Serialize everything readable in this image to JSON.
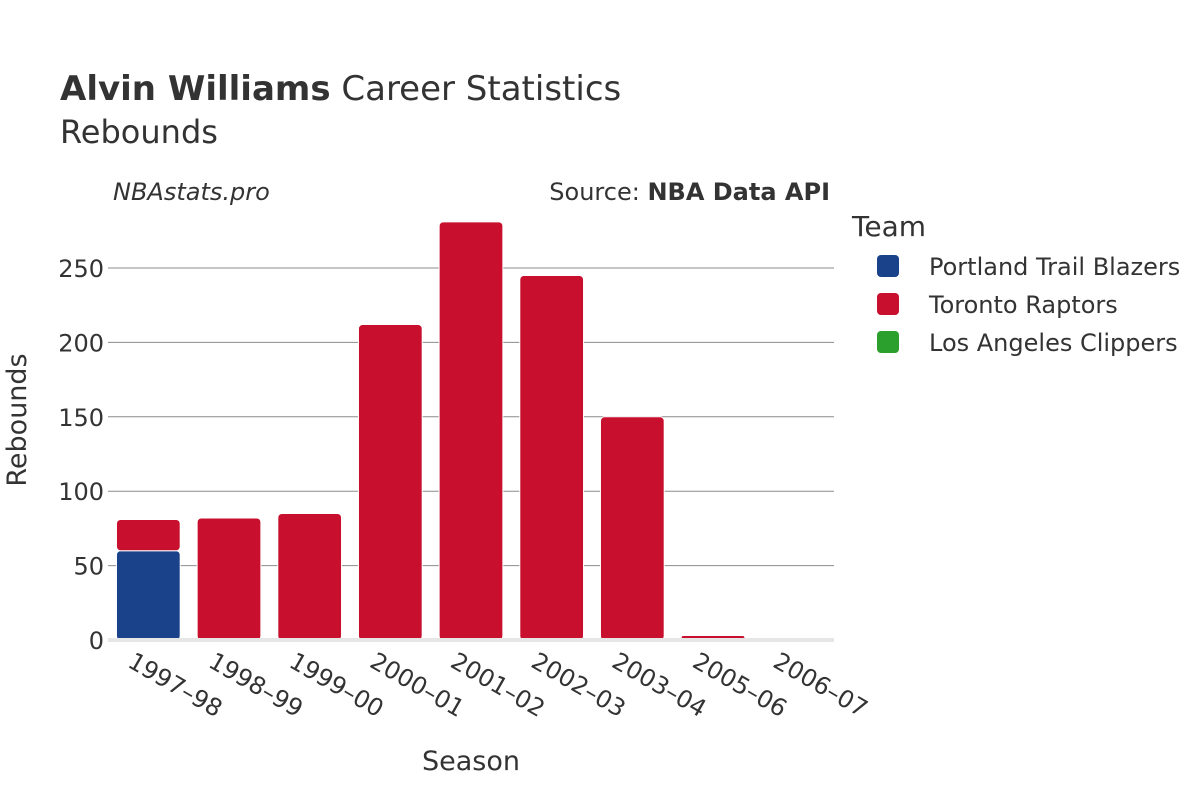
{
  "header": {
    "player_name": "Alvin Williams",
    "title_suffix": " Career Statistics",
    "subtitle": "Rebounds",
    "watermark": "NBAstats.pro",
    "source_prefix": "Source: ",
    "source_name": "NBA Data API"
  },
  "legend": {
    "title": "Team",
    "placement": "right"
  },
  "chart_data": {
    "type": "bar",
    "stacked": true,
    "xlabel": "Season",
    "ylabel": "Rebounds",
    "ylim": [
      0,
      285
    ],
    "yticks": [
      0,
      50,
      100,
      150,
      200,
      250
    ],
    "grid": true,
    "categories": [
      "1997–98",
      "1998–99",
      "1999–00",
      "2000–01",
      "2001–02",
      "2002–03",
      "2003–04",
      "2005–06",
      "2006–07"
    ],
    "series": [
      {
        "name": "Portland Trail Blazers",
        "color": "#1a428a",
        "values": [
          60,
          0,
          0,
          0,
          0,
          0,
          0,
          0,
          0
        ]
      },
      {
        "name": "Toronto Raptors",
        "color": "#c8102e",
        "values": [
          21,
          82,
          85,
          212,
          281,
          245,
          150,
          3,
          0
        ]
      },
      {
        "name": "Los Angeles Clippers",
        "color": "#2ca02c",
        "values": [
          0,
          0,
          0,
          0,
          0,
          0,
          0,
          0,
          1
        ]
      }
    ]
  }
}
